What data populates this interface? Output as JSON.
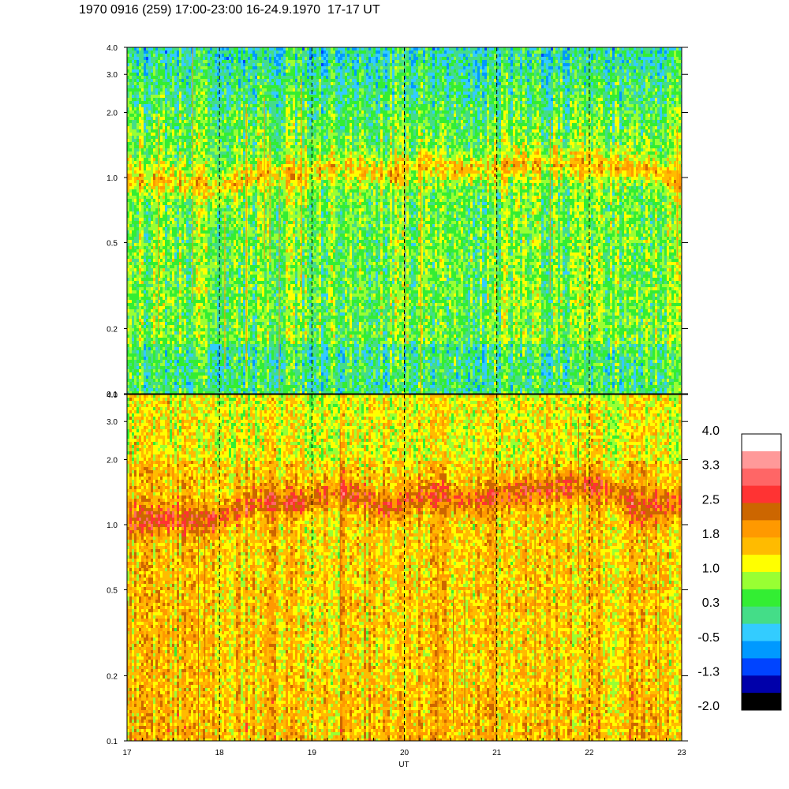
{
  "title": "1970 0916 (259) 17:00-23:00 16-24.9.1970  17-17 UT",
  "chart_data": {
    "type": "heatmap",
    "xlabel": "UT",
    "x_range": [
      17,
      23
    ],
    "x_ticks": [
      "17",
      "18",
      "19",
      "20",
      "21",
      "22",
      "23"
    ],
    "x_dashed_lines": [
      18,
      19,
      20,
      21,
      22
    ],
    "y_scale": "log",
    "y_range": [
      0.1,
      4.0
    ],
    "y_ticks": [
      "0.1",
      "0.2",
      "0.5",
      "1.0",
      "2.0",
      "3.0",
      "4.0"
    ],
    "panels": [
      {
        "name": "upper",
        "dominant_band_center": [
          1.0,
          1.0,
          0.9,
          1.05,
          1.05,
          1.15,
          1.05,
          1.15,
          1.1,
          1.15,
          1.2,
          1.15,
          1.15,
          0.95
        ],
        "band_level": 1.5,
        "background_level": 0.6
      },
      {
        "name": "lower",
        "dominant_band_center": [
          1.05,
          1.1,
          1.05,
          1.3,
          1.3,
          1.45,
          1.2,
          1.4,
          1.3,
          1.4,
          1.5,
          1.55,
          1.2,
          1.3
        ],
        "band_level": 2.4,
        "background_level": 1.5
      }
    ],
    "colorbar": {
      "labels": [
        "4.0",
        "3.3",
        "2.5",
        "1.8",
        "1.0",
        "0.3",
        "-0.5",
        "-1.3",
        "-2.0"
      ],
      "colors": [
        "#ffffff",
        "#ff9999",
        "#ff6666",
        "#ff3333",
        "#cc6600",
        "#ff9900",
        "#ffbb00",
        "#ffff00",
        "#99ff33",
        "#33ee33",
        "#44dd88",
        "#33ccff",
        "#0099ff",
        "#0044ff",
        "#0000aa",
        "#000000"
      ]
    }
  }
}
